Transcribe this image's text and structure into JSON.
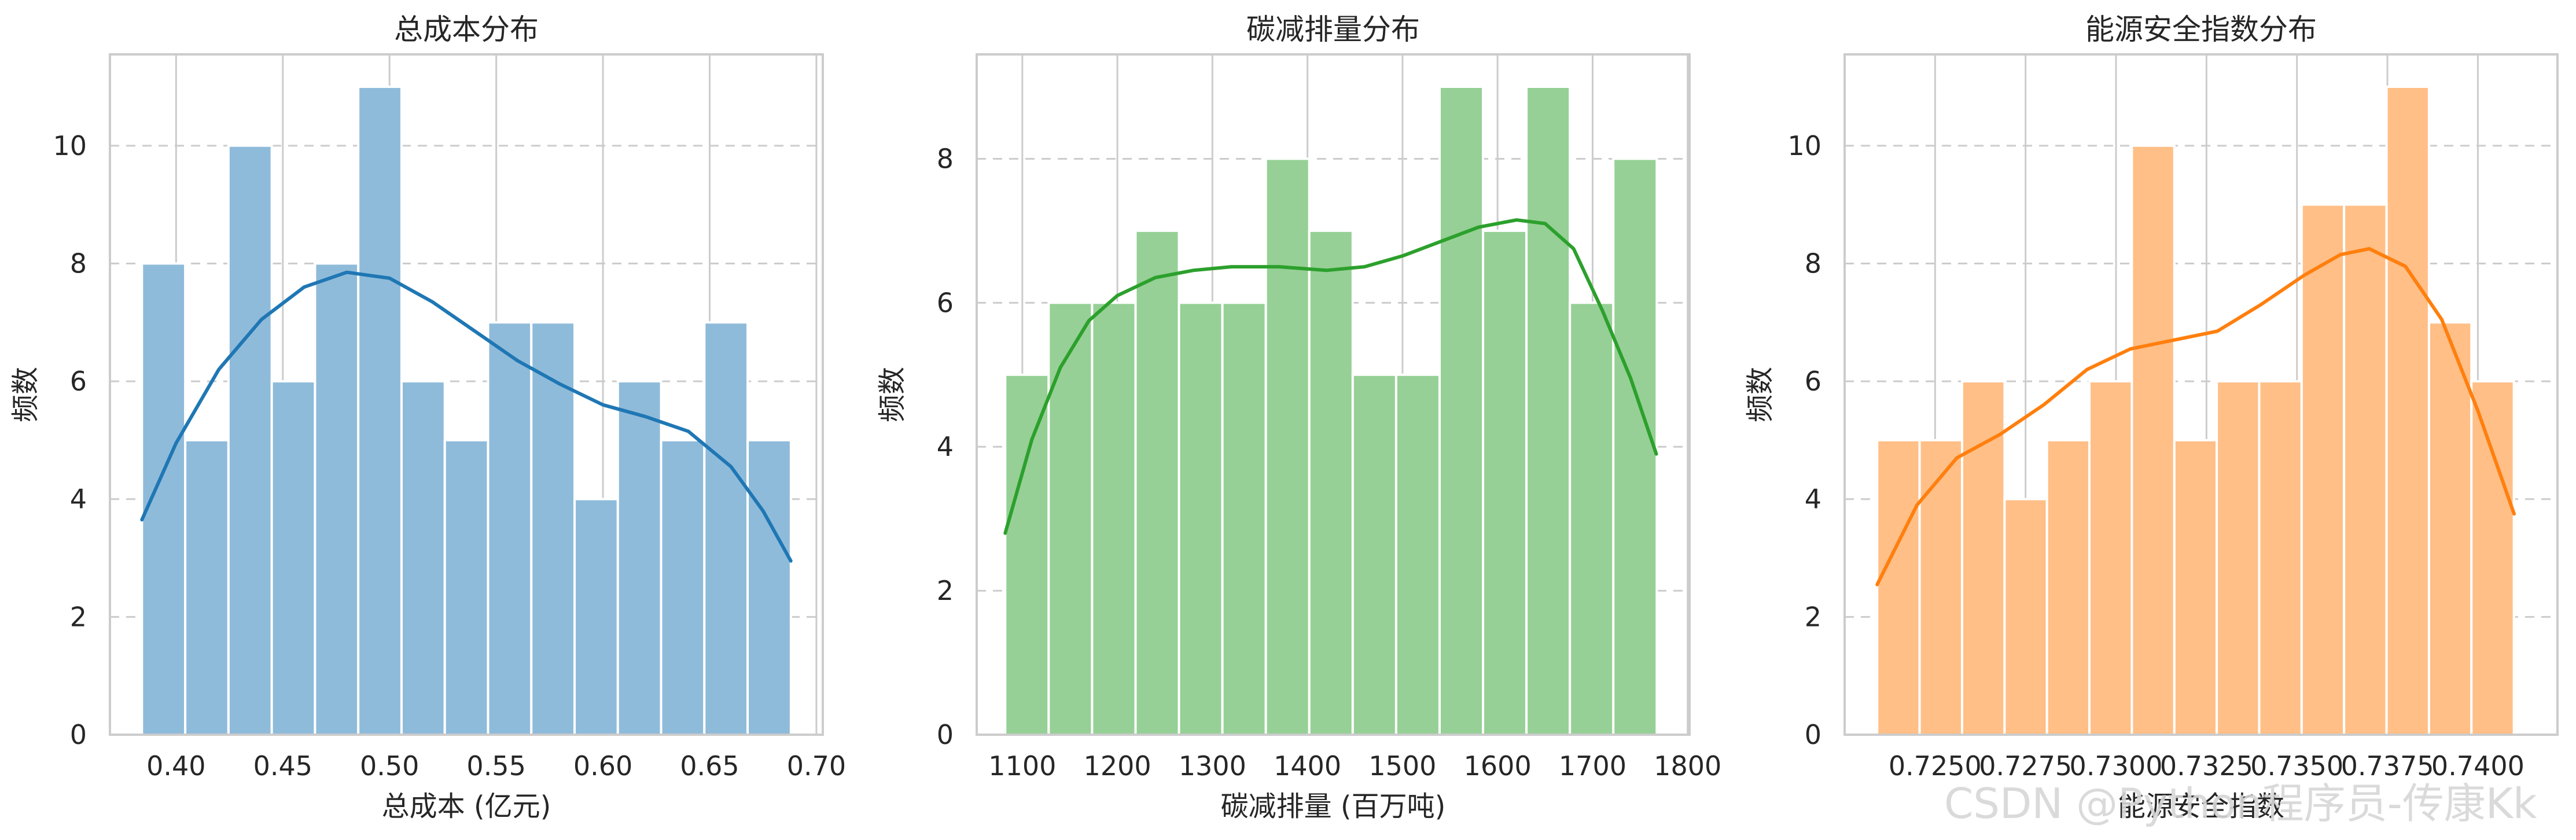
{
  "watermark": "CSDN @Python程序员-传康Kk",
  "chart_data": [
    {
      "type": "histogram",
      "title": "总成本分布",
      "xlabel": "总成本 (亿元)",
      "ylabel": "频数",
      "xlim": [
        0.369,
        0.703
      ],
      "ylim": [
        0,
        11.55
      ],
      "xticks": [
        0.4,
        0.45,
        0.5,
        0.55,
        0.6,
        0.65,
        0.7
      ],
      "xtick_labels": [
        "0.40",
        "0.45",
        "0.50",
        "0.55",
        "0.60",
        "0.65",
        "0.70"
      ],
      "yticks": [
        0,
        2,
        4,
        6,
        8,
        10
      ],
      "ytick_labels": [
        "0",
        "2",
        "4",
        "6",
        "8",
        "10"
      ],
      "bin_start": 0.384,
      "bin_width": 0.02027,
      "counts": [
        8,
        5,
        10,
        6,
        8,
        11,
        6,
        5,
        7,
        7,
        4,
        6,
        5,
        7,
        5
      ],
      "color": "#1f77b4",
      "grid": true,
      "kde": [
        [
          0.384,
          3.65
        ],
        [
          0.4,
          4.95
        ],
        [
          0.42,
          6.2
        ],
        [
          0.44,
          7.05
        ],
        [
          0.46,
          7.6
        ],
        [
          0.48,
          7.85
        ],
        [
          0.5,
          7.75
        ],
        [
          0.52,
          7.35
        ],
        [
          0.54,
          6.85
        ],
        [
          0.56,
          6.35
        ],
        [
          0.58,
          5.95
        ],
        [
          0.6,
          5.6
        ],
        [
          0.62,
          5.4
        ],
        [
          0.64,
          5.15
        ],
        [
          0.66,
          4.55
        ],
        [
          0.675,
          3.8
        ],
        [
          0.688,
          2.95
        ]
      ]
    },
    {
      "type": "histogram",
      "title": "碳减排量分布",
      "xlabel": "碳减排量 (百万吨)",
      "ylabel": "频数",
      "xlim": [
        1052,
        1802
      ],
      "ylim": [
        0,
        9.45
      ],
      "xticks": [
        1100,
        1200,
        1300,
        1400,
        1500,
        1600,
        1700,
        1800
      ],
      "xtick_labels": [
        "1100",
        "1200",
        "1300",
        "1400",
        "1500",
        "1600",
        "1700",
        "1800"
      ],
      "yticks": [
        0,
        2,
        4,
        6,
        8
      ],
      "ytick_labels": [
        "0",
        "2",
        "4",
        "6",
        "8"
      ],
      "bin_start": 1082,
      "bin_width": 45.7,
      "counts": [
        5,
        6,
        6,
        7,
        6,
        6,
        8,
        7,
        5,
        5,
        9,
        7,
        9,
        6,
        8
      ],
      "color": "#2ca02c",
      "grid": true,
      "kde": [
        [
          1082,
          2.8
        ],
        [
          1110,
          4.1
        ],
        [
          1140,
          5.1
        ],
        [
          1170,
          5.75
        ],
        [
          1200,
          6.1
        ],
        [
          1240,
          6.35
        ],
        [
          1280,
          6.45
        ],
        [
          1320,
          6.5
        ],
        [
          1370,
          6.5
        ],
        [
          1420,
          6.45
        ],
        [
          1460,
          6.5
        ],
        [
          1500,
          6.65
        ],
        [
          1540,
          6.85
        ],
        [
          1580,
          7.05
        ],
        [
          1620,
          7.15
        ],
        [
          1650,
          7.1
        ],
        [
          1680,
          6.75
        ],
        [
          1710,
          5.9
        ],
        [
          1740,
          4.95
        ],
        [
          1767,
          3.9
        ]
      ]
    },
    {
      "type": "histogram",
      "title": "能源安全指数分布",
      "xlabel": "能源安全指数",
      "ylabel": "频数",
      "xlim": [
        0.7225,
        0.7422
      ],
      "ylim": [
        0,
        11.55
      ],
      "xticks": [
        0.725,
        0.7275,
        0.73,
        0.7325,
        0.735,
        0.7375,
        0.74
      ],
      "xtick_labels": [
        "0.7250",
        "0.7275",
        "0.7300",
        "0.7325",
        "0.7350",
        "0.7375",
        "0.7400"
      ],
      "yticks": [
        0,
        2,
        4,
        6,
        8,
        10
      ],
      "ytick_labels": [
        "0",
        "2",
        "4",
        "6",
        "8",
        "10"
      ],
      "bin_start": 0.7234,
      "bin_width": 0.001173,
      "counts": [
        5,
        5,
        6,
        4,
        5,
        6,
        10,
        5,
        6,
        6,
        9,
        9,
        11,
        7,
        6
      ],
      "color": "#ff7f0e",
      "grid": true,
      "kde": [
        [
          0.7234,
          2.55
        ],
        [
          0.7245,
          3.9
        ],
        [
          0.7256,
          4.7
        ],
        [
          0.7268,
          5.1
        ],
        [
          0.728,
          5.6
        ],
        [
          0.7292,
          6.2
        ],
        [
          0.7304,
          6.55
        ],
        [
          0.7316,
          6.7
        ],
        [
          0.7328,
          6.85
        ],
        [
          0.734,
          7.3
        ],
        [
          0.7352,
          7.8
        ],
        [
          0.7362,
          8.15
        ],
        [
          0.737,
          8.25
        ],
        [
          0.738,
          7.95
        ],
        [
          0.739,
          7.05
        ],
        [
          0.74,
          5.5
        ],
        [
          0.741,
          3.75
        ]
      ]
    }
  ]
}
